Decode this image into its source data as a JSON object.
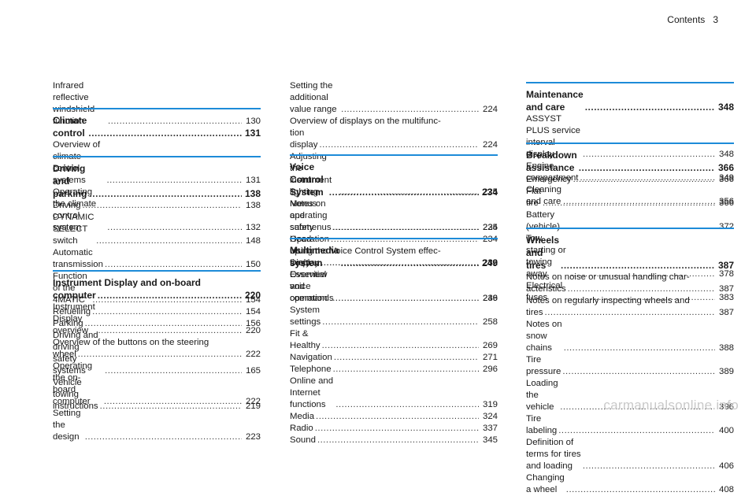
{
  "header": {
    "title": "Contents",
    "page": "3"
  },
  "watermark": "carmanualsonline.info",
  "columns": [
    {
      "sections": [
        {
          "entries": [
            {
              "text": "Infrared reflective windshield function",
              "page": "130"
            }
          ]
        },
        {
          "heading": {
            "text": "Climate control",
            "page": "131"
          },
          "entries": [
            {
              "text": "Overview of climate control systems",
              "page": "131"
            },
            {
              "text": "Operating the climate control system",
              "page": "132"
            }
          ]
        },
        {
          "heading": {
            "text": "Driving and parking",
            "page": "138"
          },
          "entries": [
            {
              "text": "Driving",
              "page": "138"
            },
            {
              "text": "DYNAMIC SELECT switch",
              "page": "148"
            },
            {
              "text": "Automatic transmission",
              "page": "150"
            },
            {
              "text": "Function of the 4MATIC",
              "page": "154"
            },
            {
              "text": "Refueling",
              "page": "154"
            },
            {
              "text": "Parking",
              "page": "156"
            },
            {
              "text": "Driving and driving safety systems",
              "page": "165"
            },
            {
              "text": "Vehicle towing instructions",
              "page": "219"
            }
          ]
        },
        {
          "heading": {
            "line1": "Instrument Display and on-board",
            "text": "computer",
            "page": "220"
          },
          "entries": [
            {
              "text": "Instrument Display overview",
              "page": "220"
            },
            {
              "line1": "Overview of the buttons on the steering",
              "text": "wheel",
              "page": "222"
            },
            {
              "text": "Operating the on-board computer",
              "page": "222"
            },
            {
              "text": "Setting the design",
              "page": "223"
            }
          ]
        }
      ]
    },
    {
      "sections": [
        {
          "entries": [
            {
              "text": "Setting the additional value range",
              "page": "224"
            },
            {
              "line1": "Overview of displays on the multifunc-",
              "text": "tion display",
              "page": "224"
            },
            {
              "text": "Adjusting the instrument lighting",
              "page": "225"
            },
            {
              "text": "Menus and submenus",
              "page": "225"
            },
            {
              "text": "Head-up Display",
              "page": "232"
            }
          ]
        },
        {
          "heading": {
            "text": "Voice Control System",
            "page": "234"
          },
          "entries": [
            {
              "text": "Notes on operating safety",
              "page": "234"
            },
            {
              "text": "Operation",
              "page": "234"
            },
            {
              "line1": "Using the Voice Control System effec-",
              "text": "tively",
              "page": "236"
            },
            {
              "text": "Essential voice commands",
              "page": "236"
            }
          ]
        },
        {
          "heading": {
            "text": "Multimedia system",
            "page": "249"
          },
          "entries": [
            {
              "text": "Overview and operation",
              "page": "249"
            },
            {
              "text": "System settings",
              "page": "258"
            },
            {
              "text": "Fit & Healthy",
              "page": "269"
            },
            {
              "text": "Navigation",
              "page": "271"
            },
            {
              "text": "Telephone",
              "page": "296"
            },
            {
              "text": "Online and Internet functions",
              "page": "319"
            },
            {
              "text": "Media",
              "page": "324"
            },
            {
              "text": "Radio",
              "page": "337"
            },
            {
              "text": "Sound",
              "page": "345"
            }
          ]
        }
      ]
    },
    {
      "sections": [
        {
          "heading": {
            "text": "Maintenance and care",
            "page": "348"
          },
          "entries": [
            {
              "text": "ASSYST PLUS service interval display",
              "page": "348"
            },
            {
              "text": "Engine compartment",
              "page": "349"
            },
            {
              "text": "Cleaning and care",
              "page": "356"
            }
          ]
        },
        {
          "heading": {
            "text": "Breakdown assistance",
            "page": "366"
          },
          "entries": [
            {
              "text": "Emergency",
              "page": "366"
            },
            {
              "text": "Flat tire",
              "page": "366"
            },
            {
              "text": "Battery (vehicle)",
              "page": "372"
            },
            {
              "text": "Tow starting or towing away",
              "page": "378"
            },
            {
              "text": "Electrical fuses",
              "page": "383"
            }
          ]
        },
        {
          "heading": {
            "text": "Wheels and tires",
            "page": "387"
          },
          "entries": [
            {
              "line1": "Notes on noise or unusual handling char-",
              "text": "acteristics",
              "page": "387"
            },
            {
              "line1": "Notes on regularly inspecting wheels and",
              "text": "tires",
              "page": "387"
            },
            {
              "text": "Notes on snow chains",
              "page": "388"
            },
            {
              "text": "Tire pressure",
              "page": "389"
            },
            {
              "text": "Loading the vehicle",
              "page": "396"
            },
            {
              "text": "Tire labeling",
              "page": "400"
            },
            {
              "text": "Definition of terms for tires and loading",
              "page": "406"
            },
            {
              "text": "Changing a wheel",
              "page": "408"
            }
          ]
        }
      ]
    }
  ]
}
